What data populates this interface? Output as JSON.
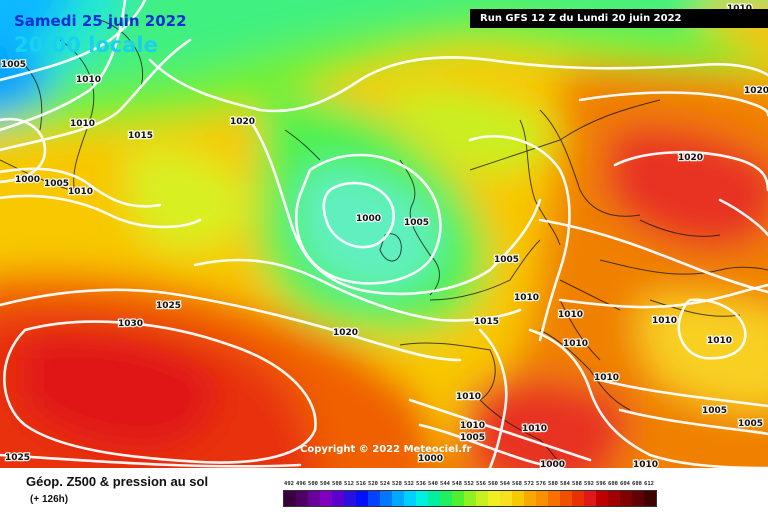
{
  "title": {
    "date": "Samedi 25 juin 2022",
    "time": "20:00 locale"
  },
  "run_banner": "Run GFS 12 Z du Lundi 20 juin 2022",
  "copyright": "Copyright © 2022 Meteociel.fr",
  "variable_label": "Géop. Z500 & pression au sol",
  "lead_time": "(+ 126h)",
  "legend": {
    "values": [
      492,
      496,
      500,
      504,
      508,
      512,
      516,
      520,
      524,
      528,
      532,
      536,
      540,
      544,
      548,
      552,
      556,
      560,
      564,
      568,
      572,
      576,
      580,
      584,
      588,
      592,
      596,
      600,
      604,
      608,
      612
    ],
    "colors": [
      "#3a0040",
      "#4d0066",
      "#6a0099",
      "#8000c0",
      "#5a00d0",
      "#2a10e0",
      "#0010ff",
      "#0044ff",
      "#0077ff",
      "#00a8ff",
      "#00d0ff",
      "#00f0e0",
      "#00f0a0",
      "#20f060",
      "#50f030",
      "#90f020",
      "#c8f020",
      "#f0f020",
      "#f8e020",
      "#f8c800",
      "#f8a800",
      "#f89000",
      "#f87000",
      "#f05000",
      "#e83000",
      "#e01818",
      "#c00000",
      "#a00000",
      "#800000",
      "#600000",
      "#400000"
    ]
  },
  "isobars": [
    {
      "label": "1005"
    },
    {
      "label": "1010"
    },
    {
      "label": "1010"
    },
    {
      "label": "1015"
    },
    {
      "label": "1000"
    },
    {
      "label": "1005"
    },
    {
      "label": "1010"
    },
    {
      "label": "1020"
    },
    {
      "label": "1000"
    },
    {
      "label": "1005"
    },
    {
      "label": "1025"
    },
    {
      "label": "1030"
    },
    {
      "label": "1020"
    },
    {
      "label": "1005"
    },
    {
      "label": "1010"
    },
    {
      "label": "1015"
    },
    {
      "label": "1010"
    },
    {
      "label": "1010"
    },
    {
      "label": "1010"
    },
    {
      "label": "1010"
    },
    {
      "label": "1010"
    },
    {
      "label": "1010"
    },
    {
      "label": "1010"
    },
    {
      "label": "1005"
    },
    {
      "label": "1000"
    },
    {
      "label": "1025"
    },
    {
      "label": "1020"
    },
    {
      "label": "1010"
    },
    {
      "label": "1010"
    },
    {
      "label": "1005"
    },
    {
      "label": "1005"
    },
    {
      "label": "1010"
    },
    {
      "label": "1020"
    },
    {
      "label": "1000"
    }
  ]
}
